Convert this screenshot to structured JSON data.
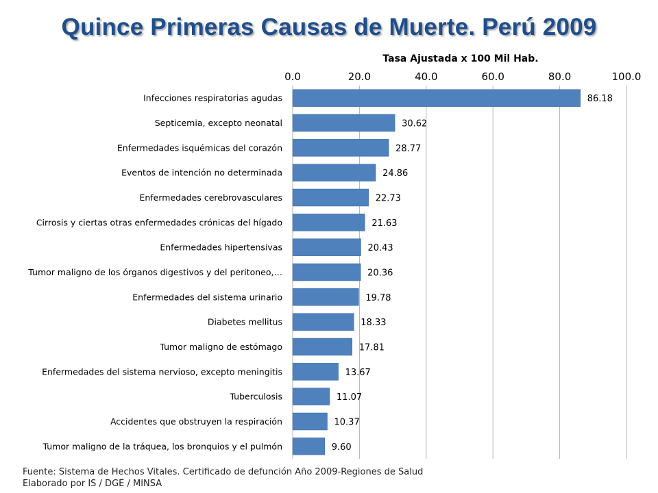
{
  "title": "Quince Primeras Causas de Muerte. Perú 2009",
  "source": [
    "Fuente: Sistema de Hechos Vitales. Certificado de defunción Año 2009-Regiones de Salud",
    "Elaborado por IS / DGE / MINSA"
  ],
  "chart_data": {
    "type": "bar",
    "orientation": "horizontal",
    "title": "",
    "xlabel": "Tasa Ajustada x 100 Mil Hab.",
    "ylabel": "",
    "xlim": [
      0,
      100
    ],
    "xticks": [
      "0.0",
      "20.0",
      "40.0",
      "60.0",
      "80.0",
      "100.0"
    ],
    "axis_position": "top",
    "grid": true,
    "bar_color": "#4f81bd",
    "categories": [
      "Infecciones respiratorias agudas",
      "Septicemia, excepto neonatal",
      "Enfermedades isquémicas del corazón",
      "Eventos de intención no determinada",
      "Enfermedades cerebrovasculares",
      "Cirrosis y ciertas otras enfermedades crónicas del hígado",
      "Enfermedades hipertensivas",
      "Tumor maligno de los órganos digestivos y del peritoneo,…",
      "Enfermedades del sistema urinario",
      "Diabetes mellitus",
      "Tumor maligno de estómago",
      "Enfermedades del sistema nervioso, excepto meningitis",
      "Tuberculosis",
      "Accidentes que obstruyen la respiración",
      "Tumor maligno de la tráquea, los bronquios y el pulmón"
    ],
    "values": [
      86.18,
      30.62,
      28.77,
      24.86,
      22.73,
      21.63,
      20.43,
      20.36,
      19.78,
      18.33,
      17.81,
      13.67,
      11.07,
      10.37,
      9.6
    ],
    "data_labels": [
      "86.18",
      "30.62",
      "28.77",
      "24.86",
      "22.73",
      "21.63",
      "20.43",
      "20.36",
      "19.78",
      "18.33",
      "17.81",
      "13.67",
      "11.07",
      "10.37",
      "9.60"
    ]
  }
}
